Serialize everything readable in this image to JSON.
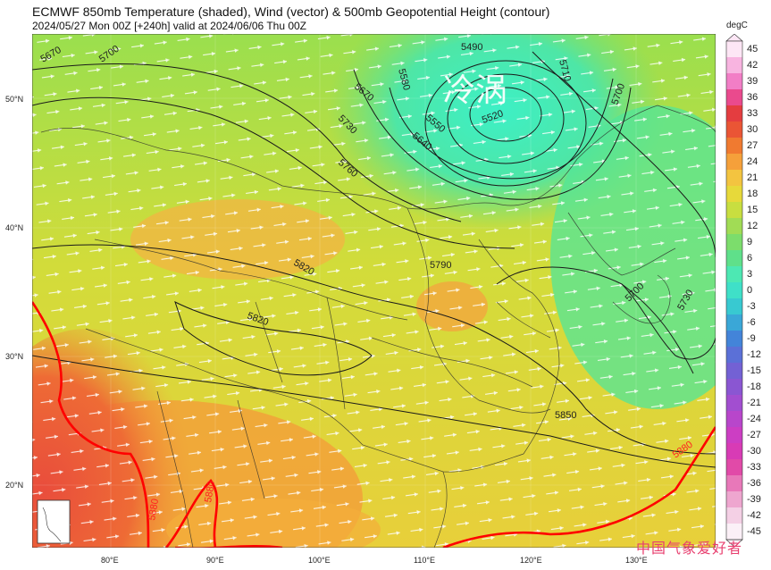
{
  "title": "ECMWF 850mb Temperature (shaded), Wind (vector) & 500mb Geopotential Height (contour)",
  "subtitle": "2024/05/27 Mon 00Z [+240h] valid at 2024/06/06 Thu 00Z",
  "annotation": "冷涡",
  "watermark": "中国气象爱好者",
  "colorbar": {
    "unit": "degC",
    "ticks": [
      "45",
      "42",
      "39",
      "36",
      "33",
      "30",
      "27",
      "24",
      "21",
      "18",
      "15",
      "12",
      "9",
      "6",
      "3",
      "0",
      "-3",
      "-6",
      "-9",
      "-12",
      "-15",
      "-18",
      "-21",
      "-24",
      "-27",
      "-30",
      "-33",
      "-36",
      "-39",
      "-42",
      "-45"
    ],
    "colors": [
      "#fde6f5",
      "#f8b4e0",
      "#f27ec6",
      "#ea4a8d",
      "#e43d40",
      "#ea5535",
      "#f07a30",
      "#f5a03a",
      "#f3c440",
      "#e7d93a",
      "#c8de40",
      "#a1dc55",
      "#7cdd6c",
      "#5fe08a",
      "#4de8b3",
      "#3fe0c8",
      "#38c9d1",
      "#3aa7d7",
      "#4384d9",
      "#5b70d7",
      "#7361d4",
      "#8a56d2",
      "#a24ed0",
      "#b846cb",
      "#cc3ec3",
      "#d83bb5",
      "#e14aa8",
      "#e878b9",
      "#eea6cf",
      "#f4d0e5",
      "#fbf0f7"
    ]
  },
  "axes": {
    "lat_labels": [
      "50°N",
      "40°N",
      "30°N",
      "20°N"
    ],
    "lon_labels": [
      "80°E",
      "90°E",
      "100°E",
      "110°E",
      "120°E",
      "130°E"
    ]
  },
  "contours": {
    "labels": [
      "5670",
      "5700",
      "5490",
      "5520",
      "5550",
      "5580",
      "5640",
      "5670",
      "5730",
      "5760",
      "5710",
      "5700",
      "5820",
      "5820",
      "5790",
      "5700",
      "5730",
      "5850",
      "5880",
      "5880",
      "5880",
      "5880"
    ]
  },
  "colors": {
    "contour_line": "#1a1a1a",
    "contour_5880": "#ff0000",
    "wind_arrow": "#ffffff"
  }
}
